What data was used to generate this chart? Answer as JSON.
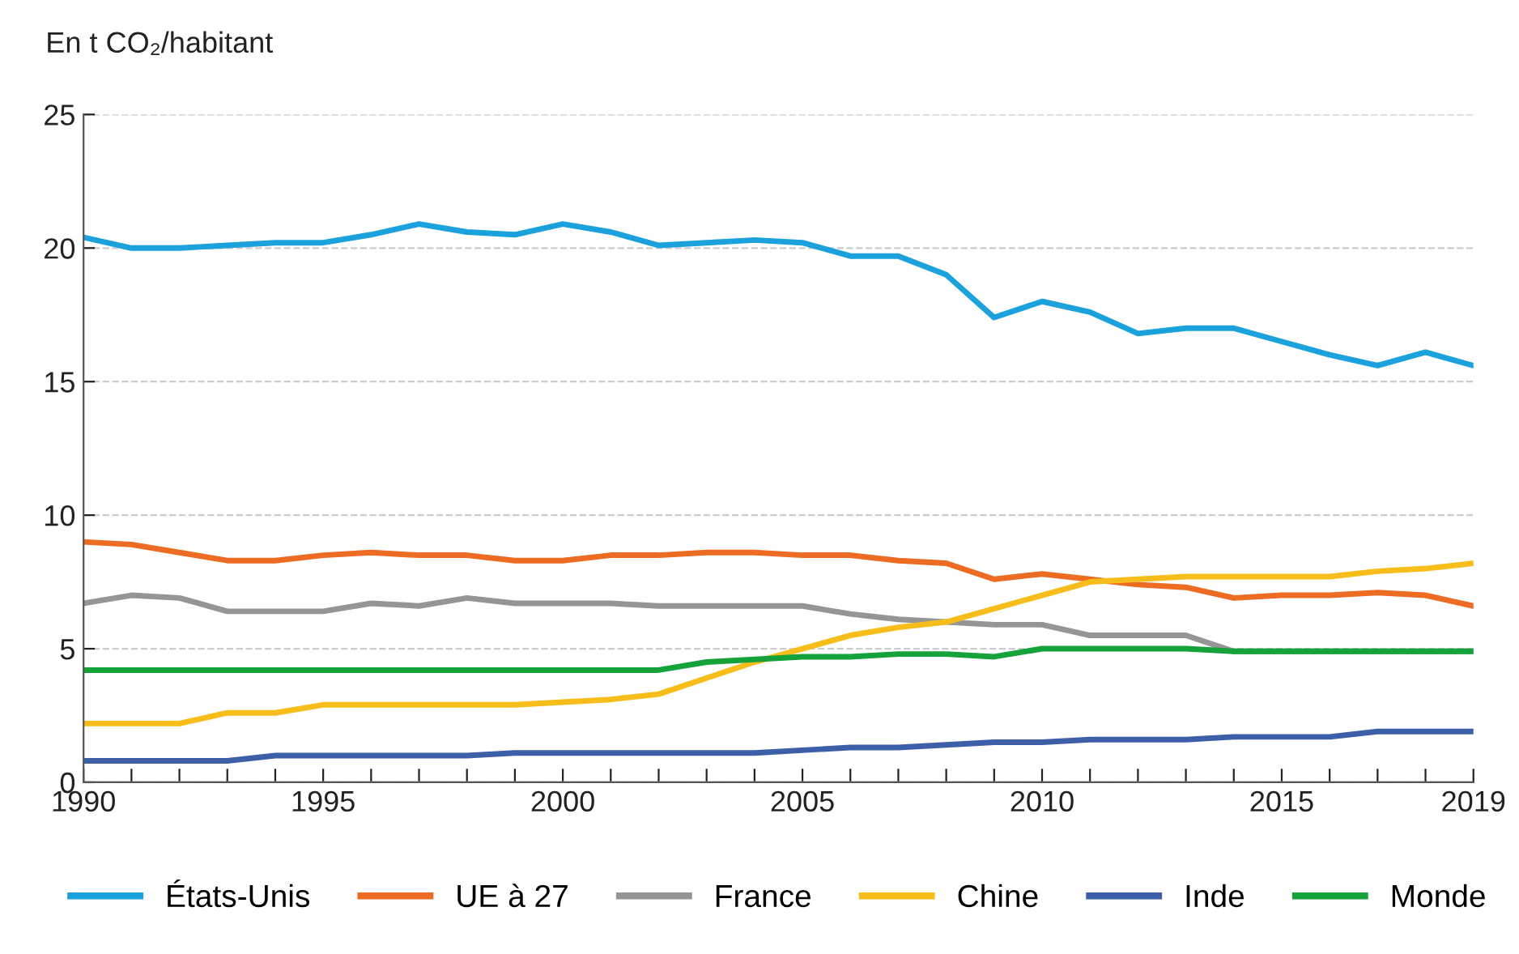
{
  "chart_data": {
    "type": "line",
    "ylabel": "En t CO₂/habitant",
    "x": [
      1990,
      1991,
      1992,
      1993,
      1994,
      1995,
      1996,
      1997,
      1998,
      1999,
      2000,
      2001,
      2002,
      2003,
      2004,
      2005,
      2006,
      2007,
      2008,
      2009,
      2010,
      2011,
      2012,
      2013,
      2014,
      2015,
      2016,
      2017,
      2018,
      2019
    ],
    "series": [
      {
        "name": "États-Unis",
        "color": "#1ba1db",
        "values": [
          20.4,
          20.0,
          20.0,
          20.1,
          20.2,
          20.2,
          20.5,
          20.9,
          20.6,
          20.5,
          20.9,
          20.6,
          20.1,
          20.2,
          20.3,
          20.2,
          19.7,
          19.7,
          19.0,
          17.4,
          18.0,
          17.6,
          16.8,
          17.0,
          17.0,
          16.5,
          16.0,
          15.6,
          16.1,
          15.6
        ]
      },
      {
        "name": "UE à 27",
        "color": "#ec6c23",
        "values": [
          9.0,
          8.9,
          8.6,
          8.3,
          8.3,
          8.5,
          8.6,
          8.5,
          8.5,
          8.3,
          8.3,
          8.5,
          8.5,
          8.6,
          8.6,
          8.5,
          8.5,
          8.3,
          8.2,
          7.6,
          7.8,
          7.6,
          7.4,
          7.3,
          6.9,
          7.0,
          7.0,
          7.1,
          7.0,
          6.6
        ]
      },
      {
        "name": "France",
        "color": "#959595",
        "values": [
          6.7,
          7.0,
          6.9,
          6.4,
          6.4,
          6.4,
          6.7,
          6.6,
          6.9,
          6.7,
          6.7,
          6.7,
          6.6,
          6.6,
          6.6,
          6.6,
          6.3,
          6.1,
          6.0,
          5.9,
          5.9,
          5.5,
          5.5,
          5.5,
          4.9,
          4.9,
          4.9,
          4.9,
          4.9,
          4.9
        ]
      },
      {
        "name": "Chine",
        "color": "#f7bd1a",
        "values": [
          2.2,
          2.2,
          2.2,
          2.6,
          2.6,
          2.9,
          2.9,
          2.9,
          2.9,
          2.9,
          3.0,
          3.1,
          3.3,
          3.9,
          4.5,
          5.0,
          5.5,
          5.8,
          6.0,
          6.5,
          7.0,
          7.5,
          7.6,
          7.7,
          7.7,
          7.7,
          7.7,
          7.9,
          8.0,
          8.2
        ]
      },
      {
        "name": "Inde",
        "color": "#3d5fa8",
        "values": [
          0.8,
          0.8,
          0.8,
          0.8,
          1.0,
          1.0,
          1.0,
          1.0,
          1.0,
          1.1,
          1.1,
          1.1,
          1.1,
          1.1,
          1.1,
          1.2,
          1.3,
          1.3,
          1.4,
          1.5,
          1.5,
          1.6,
          1.6,
          1.6,
          1.7,
          1.7,
          1.7,
          1.9,
          1.9,
          1.9
        ]
      },
      {
        "name": "Monde",
        "color": "#16a23a",
        "values": [
          4.2,
          4.2,
          4.2,
          4.2,
          4.2,
          4.2,
          4.2,
          4.2,
          4.2,
          4.2,
          4.2,
          4.2,
          4.2,
          4.5,
          4.6,
          4.7,
          4.7,
          4.8,
          4.8,
          4.7,
          5.0,
          5.0,
          5.0,
          5.0,
          4.9,
          4.9,
          4.9,
          4.9,
          4.9,
          4.9
        ]
      }
    ],
    "xlim": [
      1990,
      2019
    ],
    "xticks": [
      1990,
      {
        "value": 1991,
        "label": null
      },
      {
        "value": 1992,
        "label": null
      },
      {
        "value": 1993,
        "label": null
      },
      {
        "value": 1994,
        "label": null
      },
      1995,
      {
        "value": 1996,
        "label": null
      },
      {
        "value": 1997,
        "label": null
      },
      {
        "value": 1998,
        "label": null
      },
      {
        "value": 1999,
        "label": null
      },
      2000,
      {
        "value": 2001,
        "label": null
      },
      {
        "value": 2002,
        "label": null
      },
      {
        "value": 2003,
        "label": null
      },
      {
        "value": 2004,
        "label": null
      },
      2005,
      {
        "value": 2006,
        "label": null
      },
      {
        "value": 2007,
        "label": null
      },
      {
        "value": 2008,
        "label": null
      },
      {
        "value": 2009,
        "label": null
      },
      2010,
      {
        "value": 2011,
        "label": null
      },
      {
        "value": 2012,
        "label": null
      },
      {
        "value": 2013,
        "label": null
      },
      {
        "value": 2014,
        "label": null
      },
      2015,
      {
        "value": 2016,
        "label": null
      },
      {
        "value": 2017,
        "label": null
      },
      {
        "value": 2018,
        "label": null
      },
      2019
    ],
    "ylim": [
      0,
      25
    ],
    "yticks": [
      0,
      5,
      10,
      15,
      20,
      25
    ],
    "grid": "y",
    "legend": "bottom",
    "line_style": "solid",
    "marker": "none"
  }
}
